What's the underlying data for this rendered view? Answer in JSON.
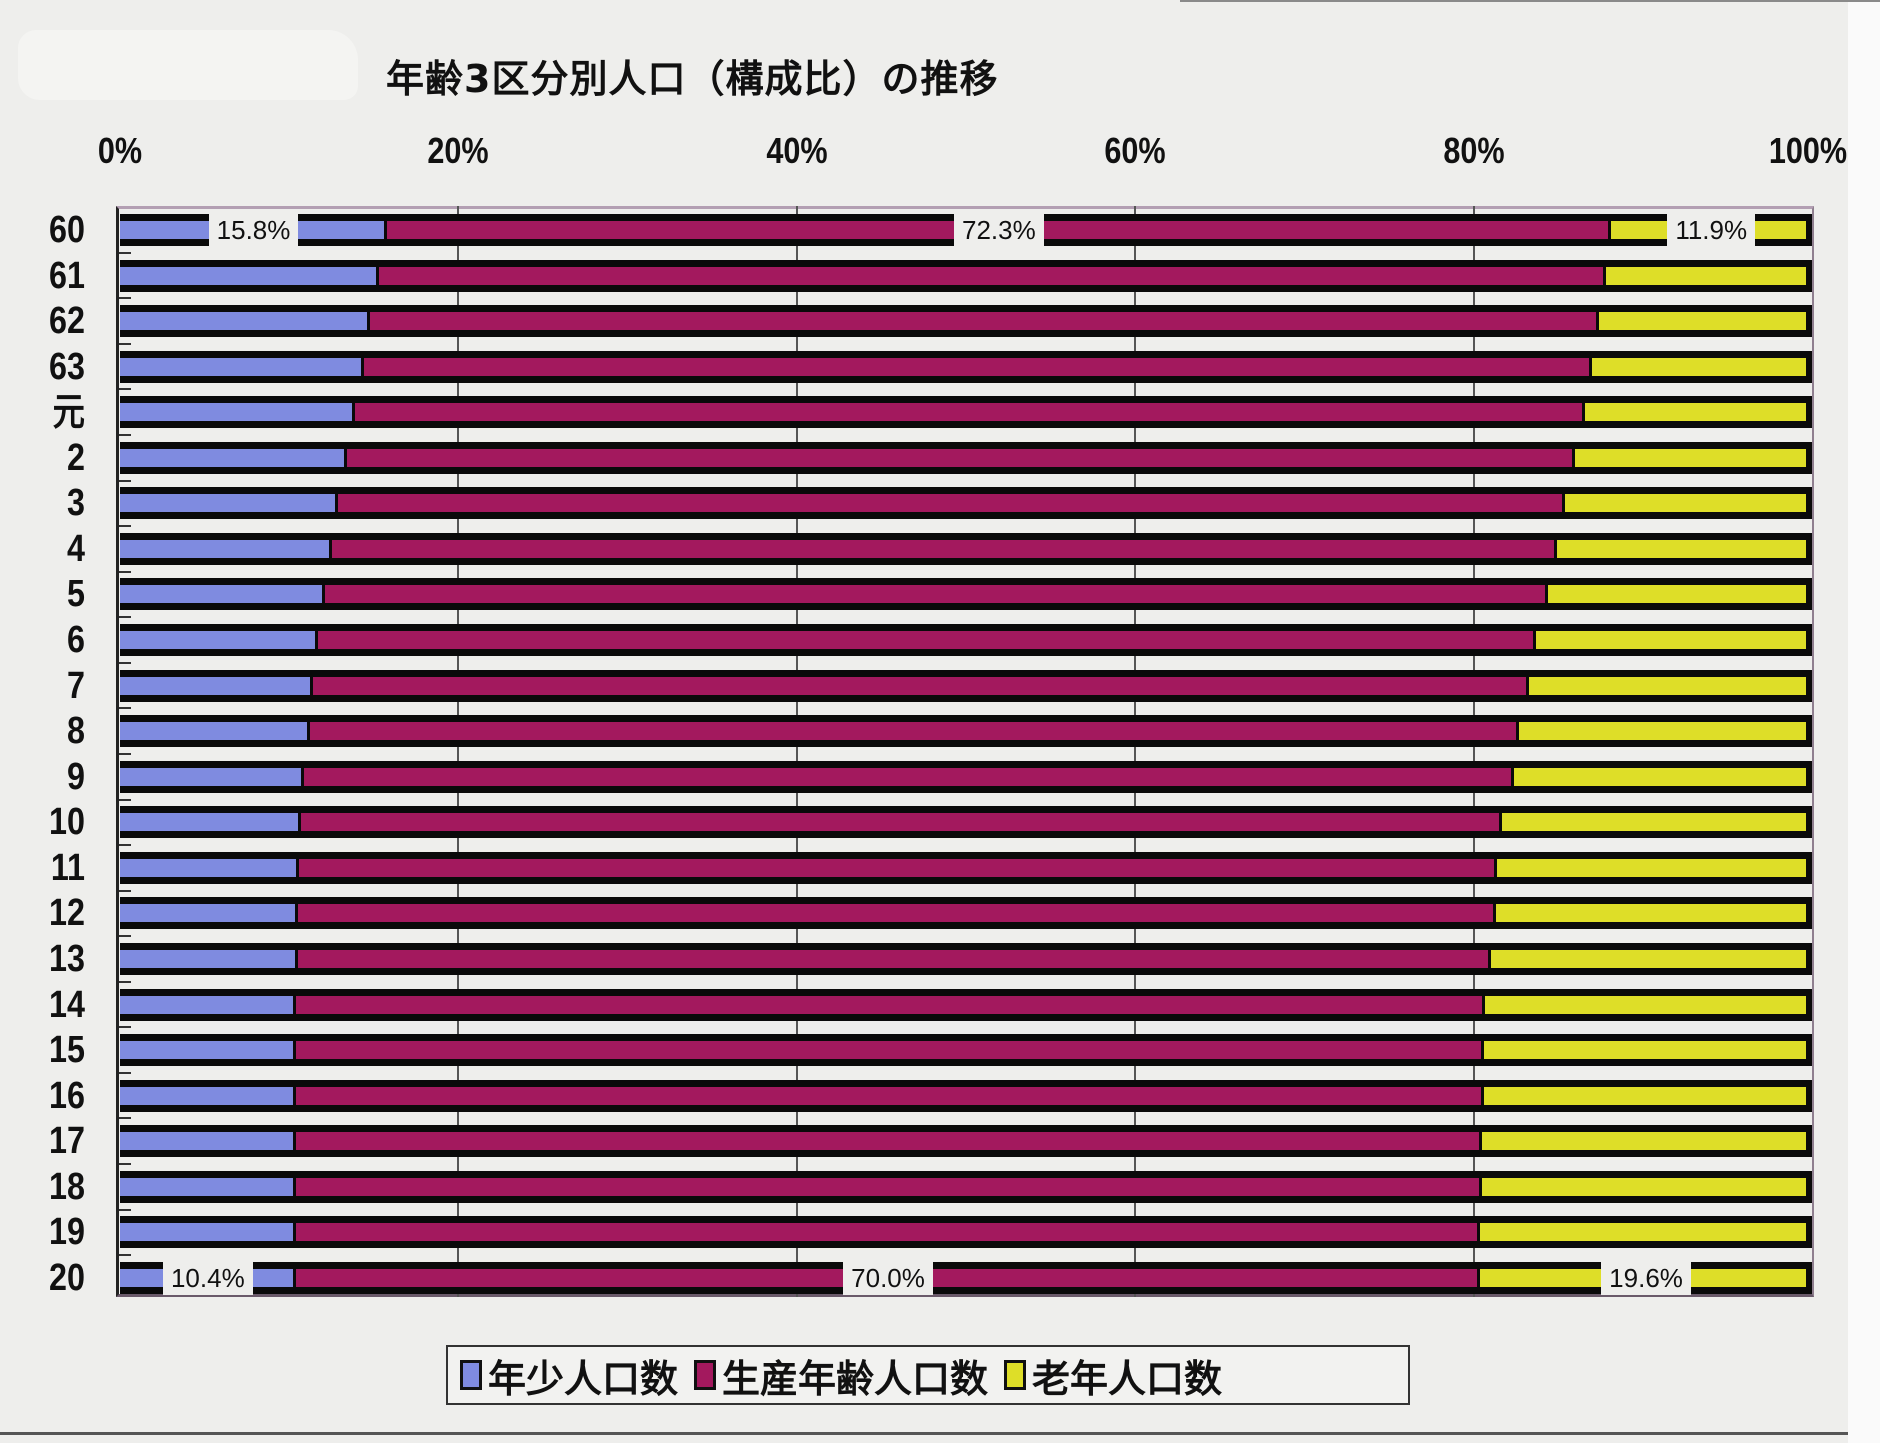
{
  "chart_data": {
    "type": "bar",
    "orientation": "horizontal",
    "stacked": "percent",
    "title": "年齢3区分別人口（構成比）の推移",
    "xlabel": "",
    "ylabel": "",
    "xlim": [
      0,
      100
    ],
    "x_ticks": [
      "0%",
      "20%",
      "40%",
      "60%",
      "80%",
      "100%"
    ],
    "x_tick_values": [
      0,
      20,
      40,
      60,
      80,
      100
    ],
    "grid": true,
    "legend_position": "bottom",
    "categories": [
      "60",
      "61",
      "62",
      "63",
      "元",
      "2",
      "3",
      "4",
      "5",
      "6",
      "7",
      "8",
      "9",
      "10",
      "11",
      "12",
      "13",
      "14",
      "15",
      "16",
      "17",
      "18",
      "19",
      "20"
    ],
    "series": [
      {
        "name": "年少人口数",
        "color": "#7f8be0",
        "values": [
          15.8,
          15.3,
          14.8,
          14.4,
          13.9,
          13.4,
          12.9,
          12.5,
          12.1,
          11.7,
          11.4,
          11.2,
          10.9,
          10.7,
          10.6,
          10.5,
          10.5,
          10.4,
          10.4,
          10.4,
          10.4,
          10.4,
          10.4,
          10.4
        ]
      },
      {
        "name": "生産年齢人口数",
        "color": "#a3195e",
        "values": [
          72.3,
          72.5,
          72.6,
          72.6,
          72.7,
          72.6,
          72.5,
          72.4,
          72.3,
          72.0,
          71.9,
          71.5,
          71.5,
          71.0,
          70.8,
          70.8,
          70.5,
          70.3,
          70.2,
          70.2,
          70.1,
          70.1,
          70.0,
          70.0
        ]
      },
      {
        "name": "老年人口数",
        "color": "#dede28",
        "values": [
          11.9,
          12.2,
          12.6,
          13.0,
          13.4,
          14.0,
          14.6,
          15.1,
          15.6,
          16.3,
          16.7,
          17.3,
          17.6,
          18.3,
          18.6,
          18.7,
          19.0,
          19.3,
          19.4,
          19.4,
          19.5,
          19.5,
          19.6,
          19.6
        ]
      }
    ],
    "annotations": [
      {
        "category": "60",
        "series": 0,
        "text": "15.8%"
      },
      {
        "category": "60",
        "series": 1,
        "text": "72.3%"
      },
      {
        "category": "60",
        "series": 2,
        "text": "11.9%"
      },
      {
        "category": "20",
        "series": 0,
        "text": "10.4%"
      },
      {
        "category": "20",
        "series": 1,
        "text": "70.0%"
      },
      {
        "category": "20",
        "series": 2,
        "text": "19.6%"
      }
    ]
  }
}
